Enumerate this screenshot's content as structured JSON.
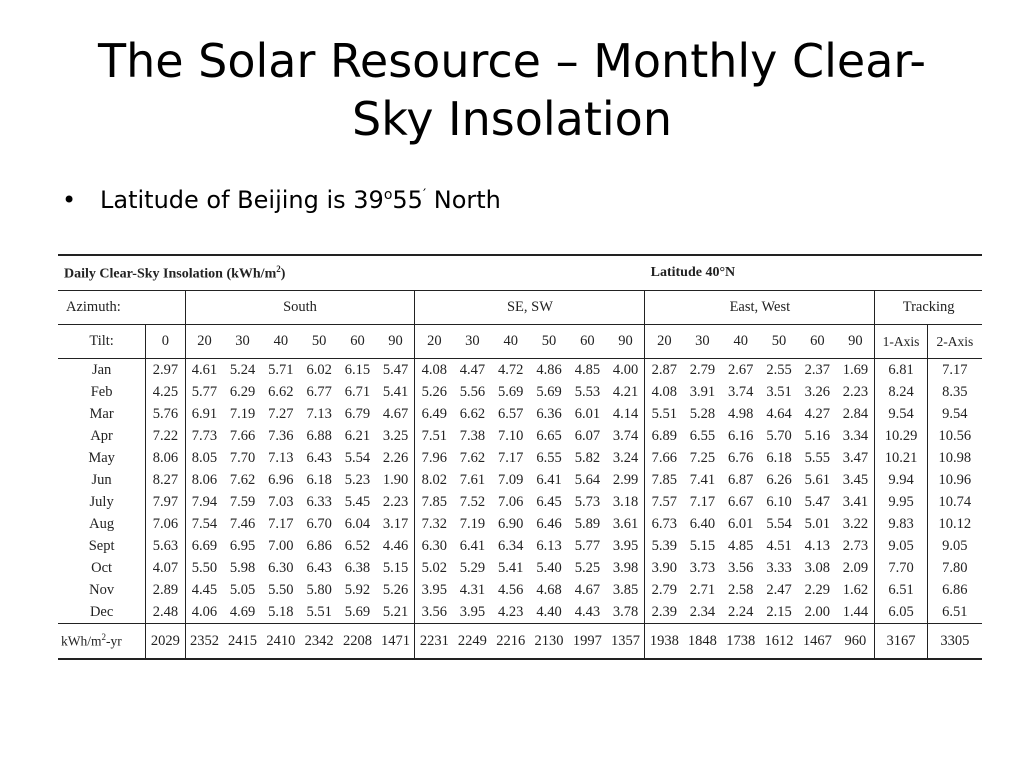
{
  "slide": {
    "title_line1": "The Solar Resource – Monthly Clear-",
    "title_line2": "Sky Insolation",
    "bullet": {
      "text_before": "Latitude of Beijing is 39",
      "degree": "o",
      "text_after": "55",
      "prime": "′",
      "text_end": " North"
    }
  },
  "table": {
    "title": "Daily Clear-Sky Insolation (kWh/m",
    "title_sup": "2",
    "title_end": ")",
    "latitude": "Latitude 40°N",
    "azimuth_label": "Azimuth:",
    "groups": [
      "South",
      "SE, SW",
      "East, West",
      "Tracking"
    ],
    "tilt_label": "Tilt:",
    "tilts": [
      "0",
      "20",
      "30",
      "40",
      "50",
      "60",
      "90",
      "20",
      "30",
      "40",
      "50",
      "60",
      "90",
      "20",
      "30",
      "40",
      "50",
      "60",
      "90",
      "1-Axis",
      "2-Axis"
    ],
    "rows": [
      {
        "month": "Jan",
        "values": [
          "2.97",
          "4.61",
          "5.24",
          "5.71",
          "6.02",
          "6.15",
          "5.47",
          "4.08",
          "4.47",
          "4.72",
          "4.86",
          "4.85",
          "4.00",
          "2.87",
          "2.79",
          "2.67",
          "2.55",
          "2.37",
          "1.69",
          "6.81",
          "7.17"
        ]
      },
      {
        "month": "Feb",
        "values": [
          "4.25",
          "5.77",
          "6.29",
          "6.62",
          "6.77",
          "6.71",
          "5.41",
          "5.26",
          "5.56",
          "5.69",
          "5.69",
          "5.53",
          "4.21",
          "4.08",
          "3.91",
          "3.74",
          "3.51",
          "3.26",
          "2.23",
          "8.24",
          "8.35"
        ]
      },
      {
        "month": "Mar",
        "values": [
          "5.76",
          "6.91",
          "7.19",
          "7.27",
          "7.13",
          "6.79",
          "4.67",
          "6.49",
          "6.62",
          "6.57",
          "6.36",
          "6.01",
          "4.14",
          "5.51",
          "5.28",
          "4.98",
          "4.64",
          "4.27",
          "2.84",
          "9.54",
          "9.54"
        ]
      },
      {
        "month": "Apr",
        "values": [
          "7.22",
          "7.73",
          "7.66",
          "7.36",
          "6.88",
          "6.21",
          "3.25",
          "7.51",
          "7.38",
          "7.10",
          "6.65",
          "6.07",
          "3.74",
          "6.89",
          "6.55",
          "6.16",
          "5.70",
          "5.16",
          "3.34",
          "10.29",
          "10.56"
        ]
      },
      {
        "month": "May",
        "values": [
          "8.06",
          "8.05",
          "7.70",
          "7.13",
          "6.43",
          "5.54",
          "2.26",
          "7.96",
          "7.62",
          "7.17",
          "6.55",
          "5.82",
          "3.24",
          "7.66",
          "7.25",
          "6.76",
          "6.18",
          "5.55",
          "3.47",
          "10.21",
          "10.98"
        ]
      },
      {
        "month": "Jun",
        "values": [
          "8.27",
          "8.06",
          "7.62",
          "6.96",
          "6.18",
          "5.23",
          "1.90",
          "8.02",
          "7.61",
          "7.09",
          "6.41",
          "5.64",
          "2.99",
          "7.85",
          "7.41",
          "6.87",
          "6.26",
          "5.61",
          "3.45",
          "9.94",
          "10.96"
        ]
      },
      {
        "month": "July",
        "values": [
          "7.97",
          "7.94",
          "7.59",
          "7.03",
          "6.33",
          "5.45",
          "2.23",
          "7.85",
          "7.52",
          "7.06",
          "6.45",
          "5.73",
          "3.18",
          "7.57",
          "7.17",
          "6.67",
          "6.10",
          "5.47",
          "3.41",
          "9.95",
          "10.74"
        ]
      },
      {
        "month": "Aug",
        "values": [
          "7.06",
          "7.54",
          "7.46",
          "7.17",
          "6.70",
          "6.04",
          "3.17",
          "7.32",
          "7.19",
          "6.90",
          "6.46",
          "5.89",
          "3.61",
          "6.73",
          "6.40",
          "6.01",
          "5.54",
          "5.01",
          "3.22",
          "9.83",
          "10.12"
        ]
      },
      {
        "month": "Sept",
        "values": [
          "5.63",
          "6.69",
          "6.95",
          "7.00",
          "6.86",
          "6.52",
          "4.46",
          "6.30",
          "6.41",
          "6.34",
          "6.13",
          "5.77",
          "3.95",
          "5.39",
          "5.15",
          "4.85",
          "4.51",
          "4.13",
          "2.73",
          "9.05",
          "9.05"
        ]
      },
      {
        "month": "Oct",
        "values": [
          "4.07",
          "5.50",
          "5.98",
          "6.30",
          "6.43",
          "6.38",
          "5.15",
          "5.02",
          "5.29",
          "5.41",
          "5.40",
          "5.25",
          "3.98",
          "3.90",
          "3.73",
          "3.56",
          "3.33",
          "3.08",
          "2.09",
          "7.70",
          "7.80"
        ]
      },
      {
        "month": "Nov",
        "values": [
          "2.89",
          "4.45",
          "5.05",
          "5.50",
          "5.80",
          "5.92",
          "5.26",
          "3.95",
          "4.31",
          "4.56",
          "4.68",
          "4.67",
          "3.85",
          "2.79",
          "2.71",
          "2.58",
          "2.47",
          "2.29",
          "1.62",
          "6.51",
          "6.86"
        ]
      },
      {
        "month": "Dec",
        "values": [
          "2.48",
          "4.06",
          "4.69",
          "5.18",
          "5.51",
          "5.69",
          "5.21",
          "3.56",
          "3.95",
          "4.23",
          "4.40",
          "4.43",
          "3.78",
          "2.39",
          "2.34",
          "2.24",
          "2.15",
          "2.00",
          "1.44",
          "6.05",
          "6.51"
        ]
      }
    ],
    "total_label": "kWh/m",
    "total_sup": "2",
    "total_label_end": "-yr",
    "totals": [
      "2029",
      "2352",
      "2415",
      "2410",
      "2342",
      "2208",
      "1471",
      "2231",
      "2249",
      "2216",
      "2130",
      "1997",
      "1357",
      "1938",
      "1848",
      "1738",
      "1612",
      "1467",
      "960",
      "3167",
      "3305"
    ]
  }
}
